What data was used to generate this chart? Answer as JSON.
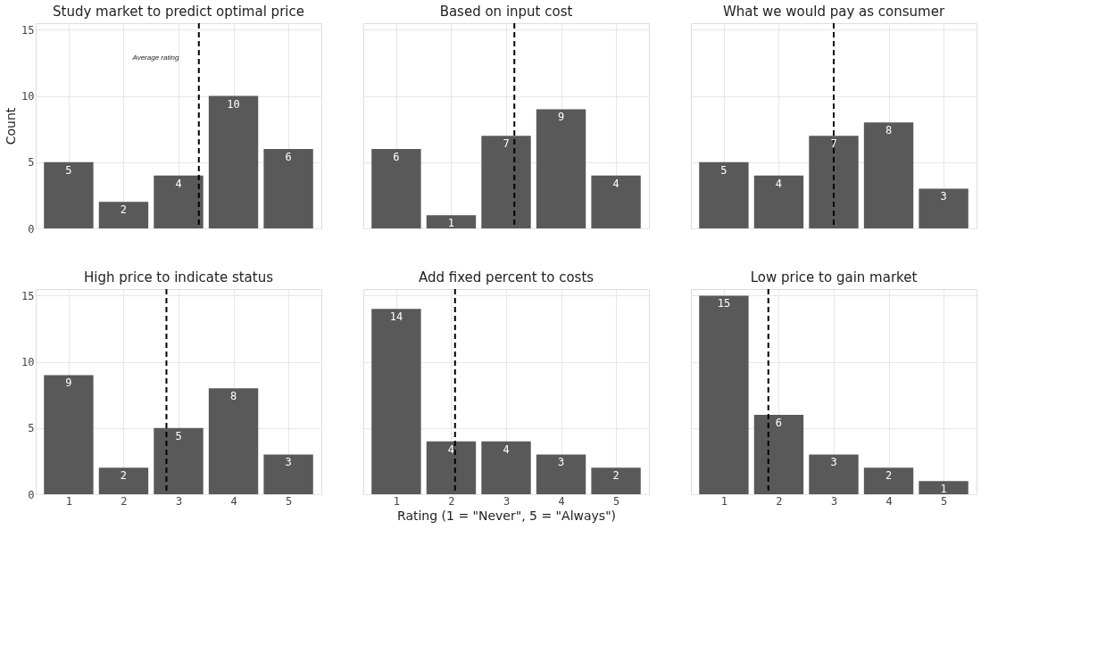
{
  "chart_data": [
    {
      "type": "bar",
      "title": "Study market to predict optimal price",
      "ylabel": "Count",
      "x": [
        1,
        2,
        3,
        4,
        5
      ],
      "values": [
        5,
        2,
        4,
        10,
        6
      ],
      "color": "#595959",
      "xlim": [
        0.4,
        5.6
      ],
      "xticks": [
        1,
        2,
        3,
        4,
        5
      ],
      "ylim": [
        0,
        15.5
      ],
      "yticks": [
        0,
        5,
        10,
        15
      ],
      "grid": true,
      "data_labels": true,
      "tick_labels": "y",
      "ref_lines": [
        {
          "axis": "x",
          "value": 3.37,
          "color": "#000000",
          "line_style": "dashed"
        }
      ],
      "annotations": [
        "Average rating"
      ]
    },
    {
      "type": "bar",
      "title": "Based on input cost",
      "x": [
        1,
        2,
        3,
        4,
        5
      ],
      "values": [
        6,
        1,
        7,
        9,
        4
      ],
      "color": "#595959",
      "xlim": [
        0.4,
        5.6
      ],
      "xticks": [
        1,
        2,
        3,
        4,
        5
      ],
      "ylim": [
        0,
        15.5
      ],
      "yticks": [
        0,
        5,
        10,
        15
      ],
      "grid": true,
      "data_labels": true,
      "tick_labels": false,
      "ref_lines": [
        {
          "axis": "x",
          "value": 3.15,
          "color": "#000000",
          "line_style": "dashed"
        }
      ]
    },
    {
      "type": "bar",
      "title": "What we would pay as consumer",
      "x": [
        1,
        2,
        3,
        4,
        5
      ],
      "values": [
        5,
        4,
        7,
        8,
        3
      ],
      "color": "#595959",
      "xlim": [
        0.4,
        5.6
      ],
      "xticks": [
        1,
        2,
        3,
        4,
        5
      ],
      "ylim": [
        0,
        15.5
      ],
      "yticks": [
        0,
        5,
        10,
        15
      ],
      "grid": true,
      "data_labels": true,
      "tick_labels": false,
      "ref_lines": [
        {
          "axis": "x",
          "value": 3.0,
          "color": "#000000",
          "line_style": "dashed"
        }
      ]
    },
    {
      "type": "bar",
      "title": "High price to indicate status",
      "x": [
        1,
        2,
        3,
        4,
        5
      ],
      "values": [
        9,
        2,
        5,
        8,
        3
      ],
      "color": "#595959",
      "xlim": [
        0.4,
        5.6
      ],
      "xticks": [
        1,
        2,
        3,
        4,
        5
      ],
      "ylim": [
        0,
        15.5
      ],
      "yticks": [
        0,
        5,
        10,
        15
      ],
      "grid": true,
      "data_labels": true,
      "ref_lines": [
        {
          "axis": "x",
          "value": 2.78,
          "color": "#000000",
          "line_style": "dashed"
        }
      ]
    },
    {
      "type": "bar",
      "title": "Add fixed percent to costs",
      "xlabel": "Rating (1 = \"Never\", 5 = \"Always\")",
      "x": [
        1,
        2,
        3,
        4,
        5
      ],
      "values": [
        14,
        4,
        4,
        3,
        2
      ],
      "color": "#595959",
      "xlim": [
        0.4,
        5.6
      ],
      "xticks": [
        1,
        2,
        3,
        4,
        5
      ],
      "ylim": [
        0,
        15.5
      ],
      "yticks": [
        0,
        5,
        10,
        15
      ],
      "grid": true,
      "data_labels": true,
      "tick_labels": "x",
      "ref_lines": [
        {
          "axis": "x",
          "value": 2.07,
          "color": "#000000",
          "line_style": "dashed"
        }
      ]
    },
    {
      "type": "bar",
      "title": "Low price to gain market",
      "x": [
        1,
        2,
        3,
        4,
        5
      ],
      "values": [
        15,
        6,
        3,
        2,
        1
      ],
      "color": "#595959",
      "xlim": [
        0.4,
        5.6
      ],
      "xticks": [
        1,
        2,
        3,
        4,
        5
      ],
      "ylim": [
        0,
        15.5
      ],
      "yticks": [
        0,
        5,
        10,
        15
      ],
      "grid": true,
      "data_labels": true,
      "tick_labels": "x",
      "ref_lines": [
        {
          "axis": "x",
          "value": 1.81,
          "color": "#000000",
          "line_style": "dashed"
        }
      ]
    }
  ]
}
